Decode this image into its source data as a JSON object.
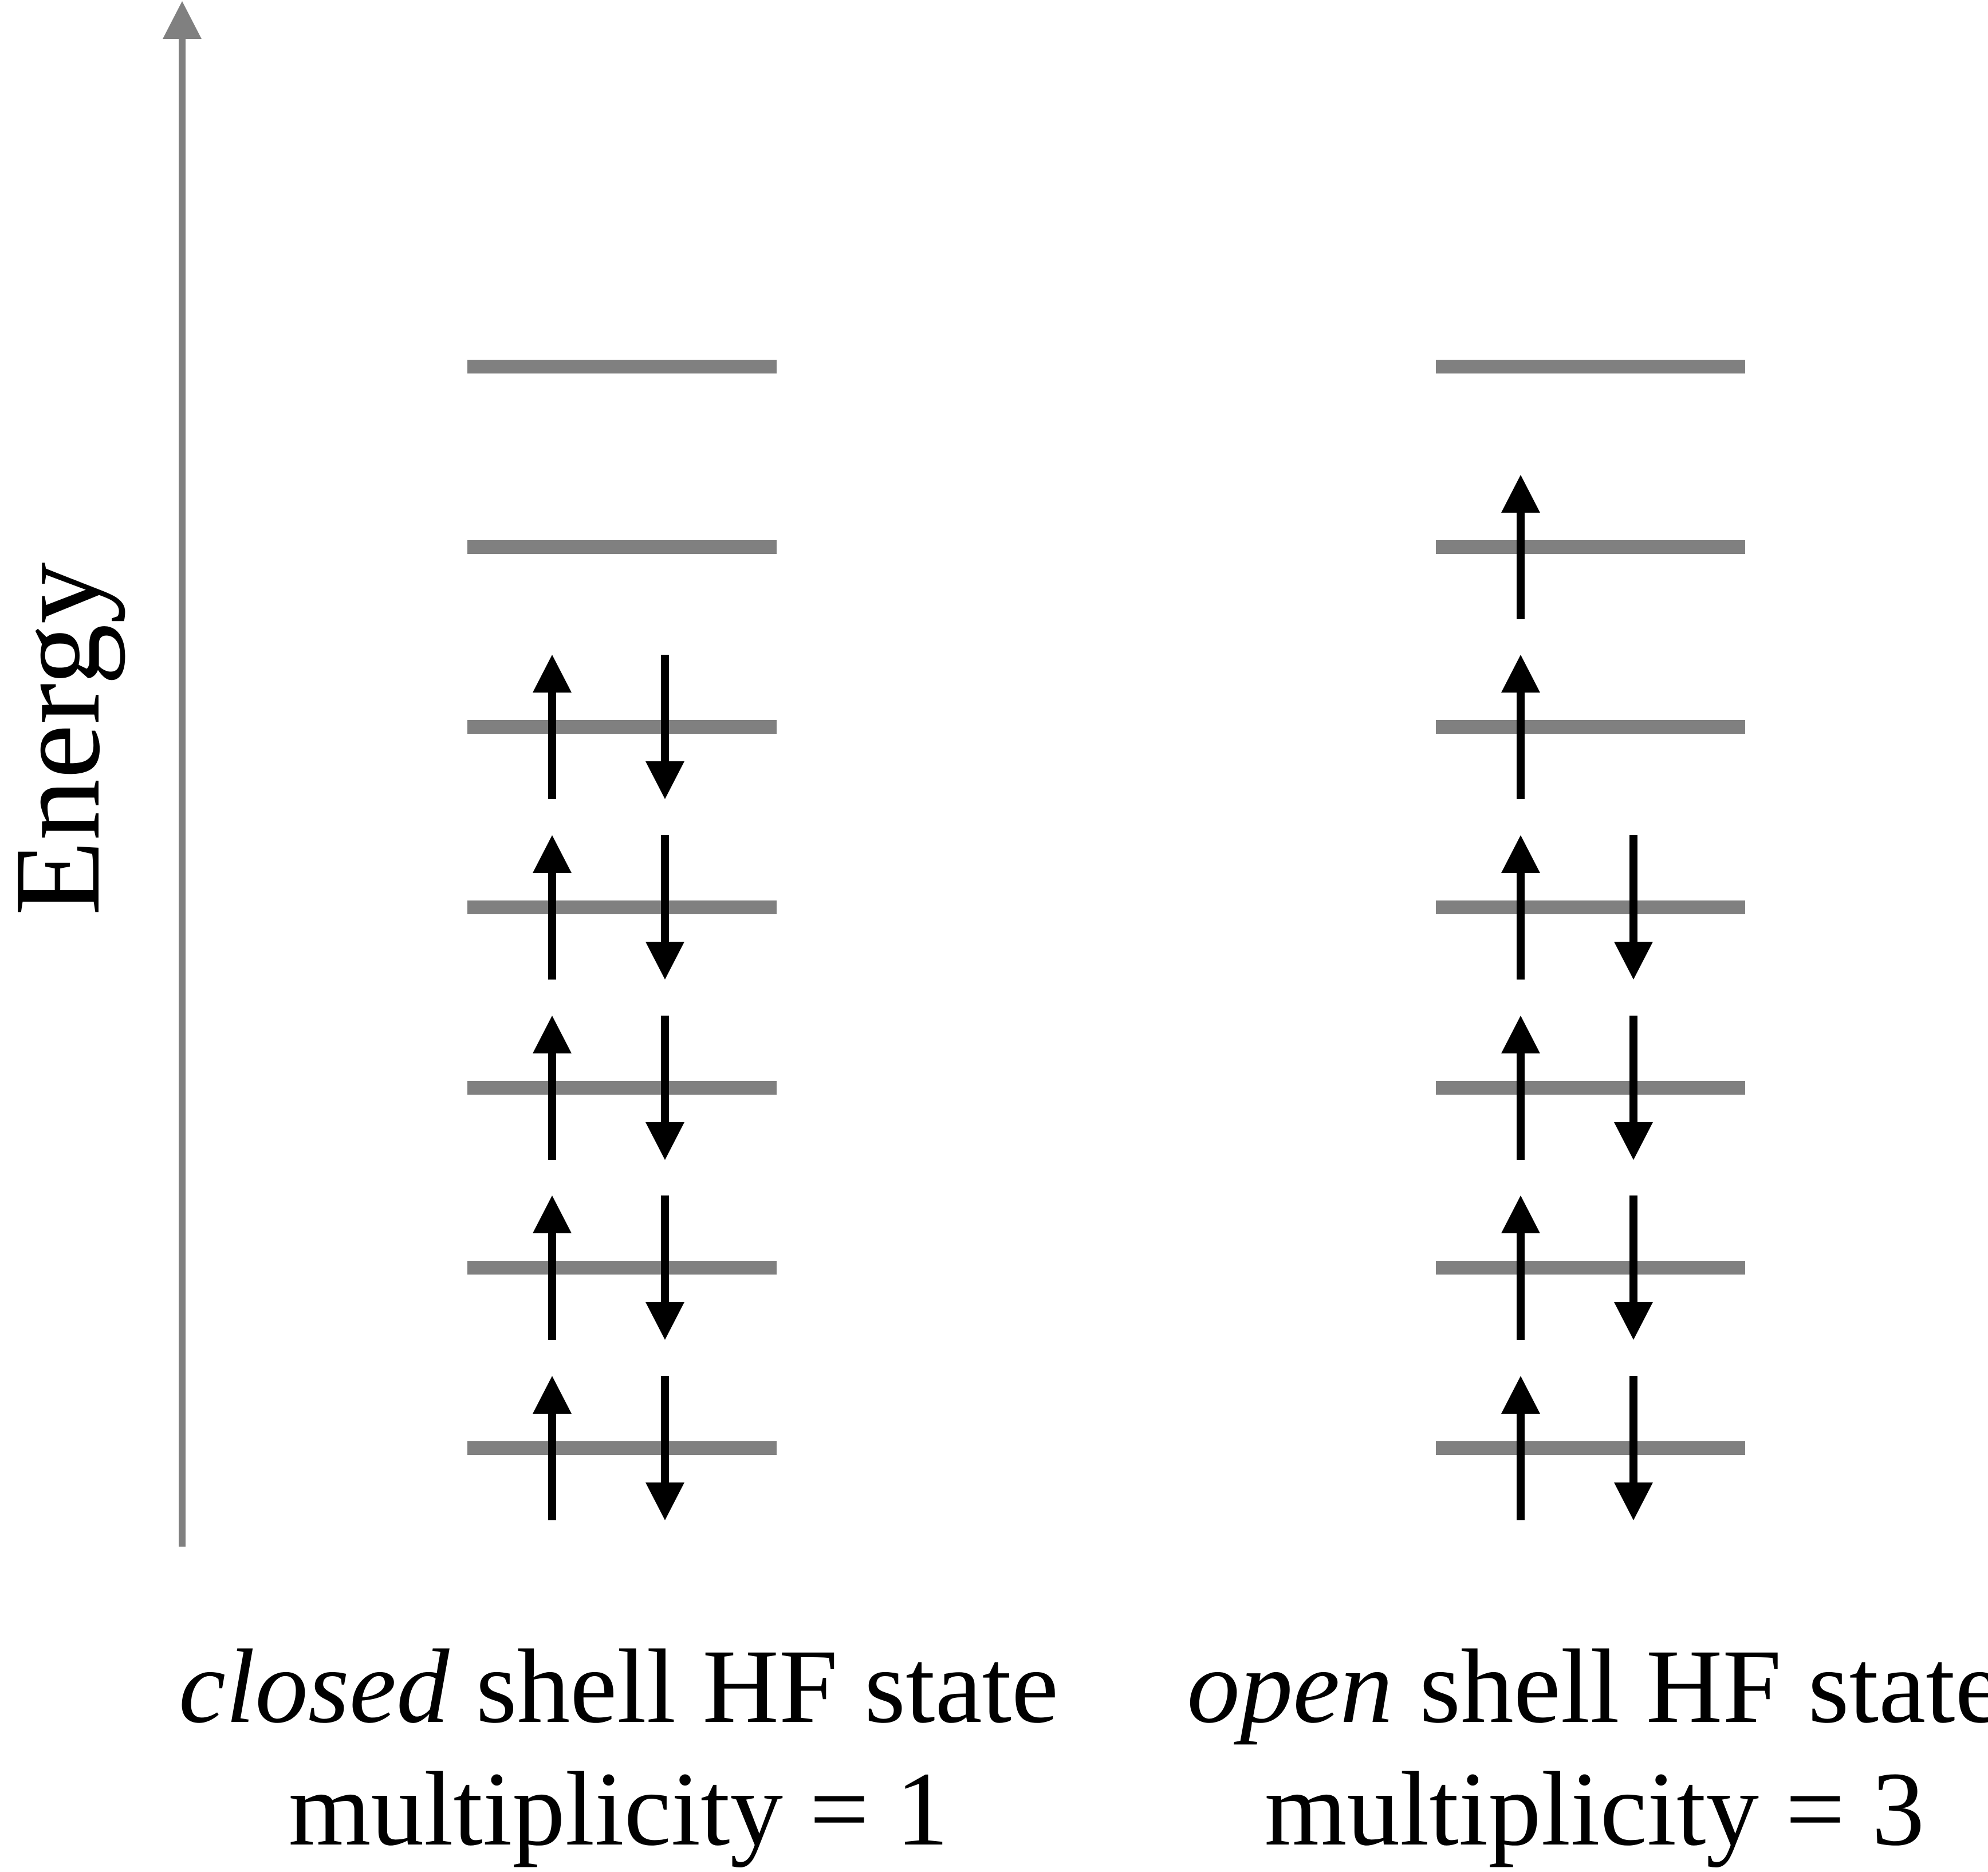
{
  "figure": {
    "axis": {
      "label": "Energy"
    },
    "colors": {
      "line_gray": "#808080",
      "arrow_black": "#000000",
      "text_black": "#000000",
      "background": "#ffffff"
    },
    "diagrams": [
      {
        "id": "closed-shell",
        "caption": {
          "italic_word": "closed",
          "rest": " shell HF state",
          "line2": "multiplicity = 1"
        },
        "levels": [
          {
            "electrons": []
          },
          {
            "electrons": []
          },
          {
            "electrons": [
              "up",
              "down"
            ]
          },
          {
            "electrons": [
              "up",
              "down"
            ]
          },
          {
            "electrons": [
              "up",
              "down"
            ]
          },
          {
            "electrons": [
              "up",
              "down"
            ]
          },
          {
            "electrons": [
              "up",
              "down"
            ]
          }
        ]
      },
      {
        "id": "open-shell",
        "caption": {
          "italic_word": "open",
          "rest": " shell HF state",
          "line2": "multiplicity = 3"
        },
        "levels": [
          {
            "electrons": []
          },
          {
            "electrons": [
              "up"
            ]
          },
          {
            "electrons": [
              "up"
            ]
          },
          {
            "electrons": [
              "up",
              "down"
            ]
          },
          {
            "electrons": [
              "up",
              "down"
            ]
          },
          {
            "electrons": [
              "up",
              "down"
            ]
          },
          {
            "electrons": [
              "up",
              "down"
            ]
          }
        ]
      }
    ]
  }
}
